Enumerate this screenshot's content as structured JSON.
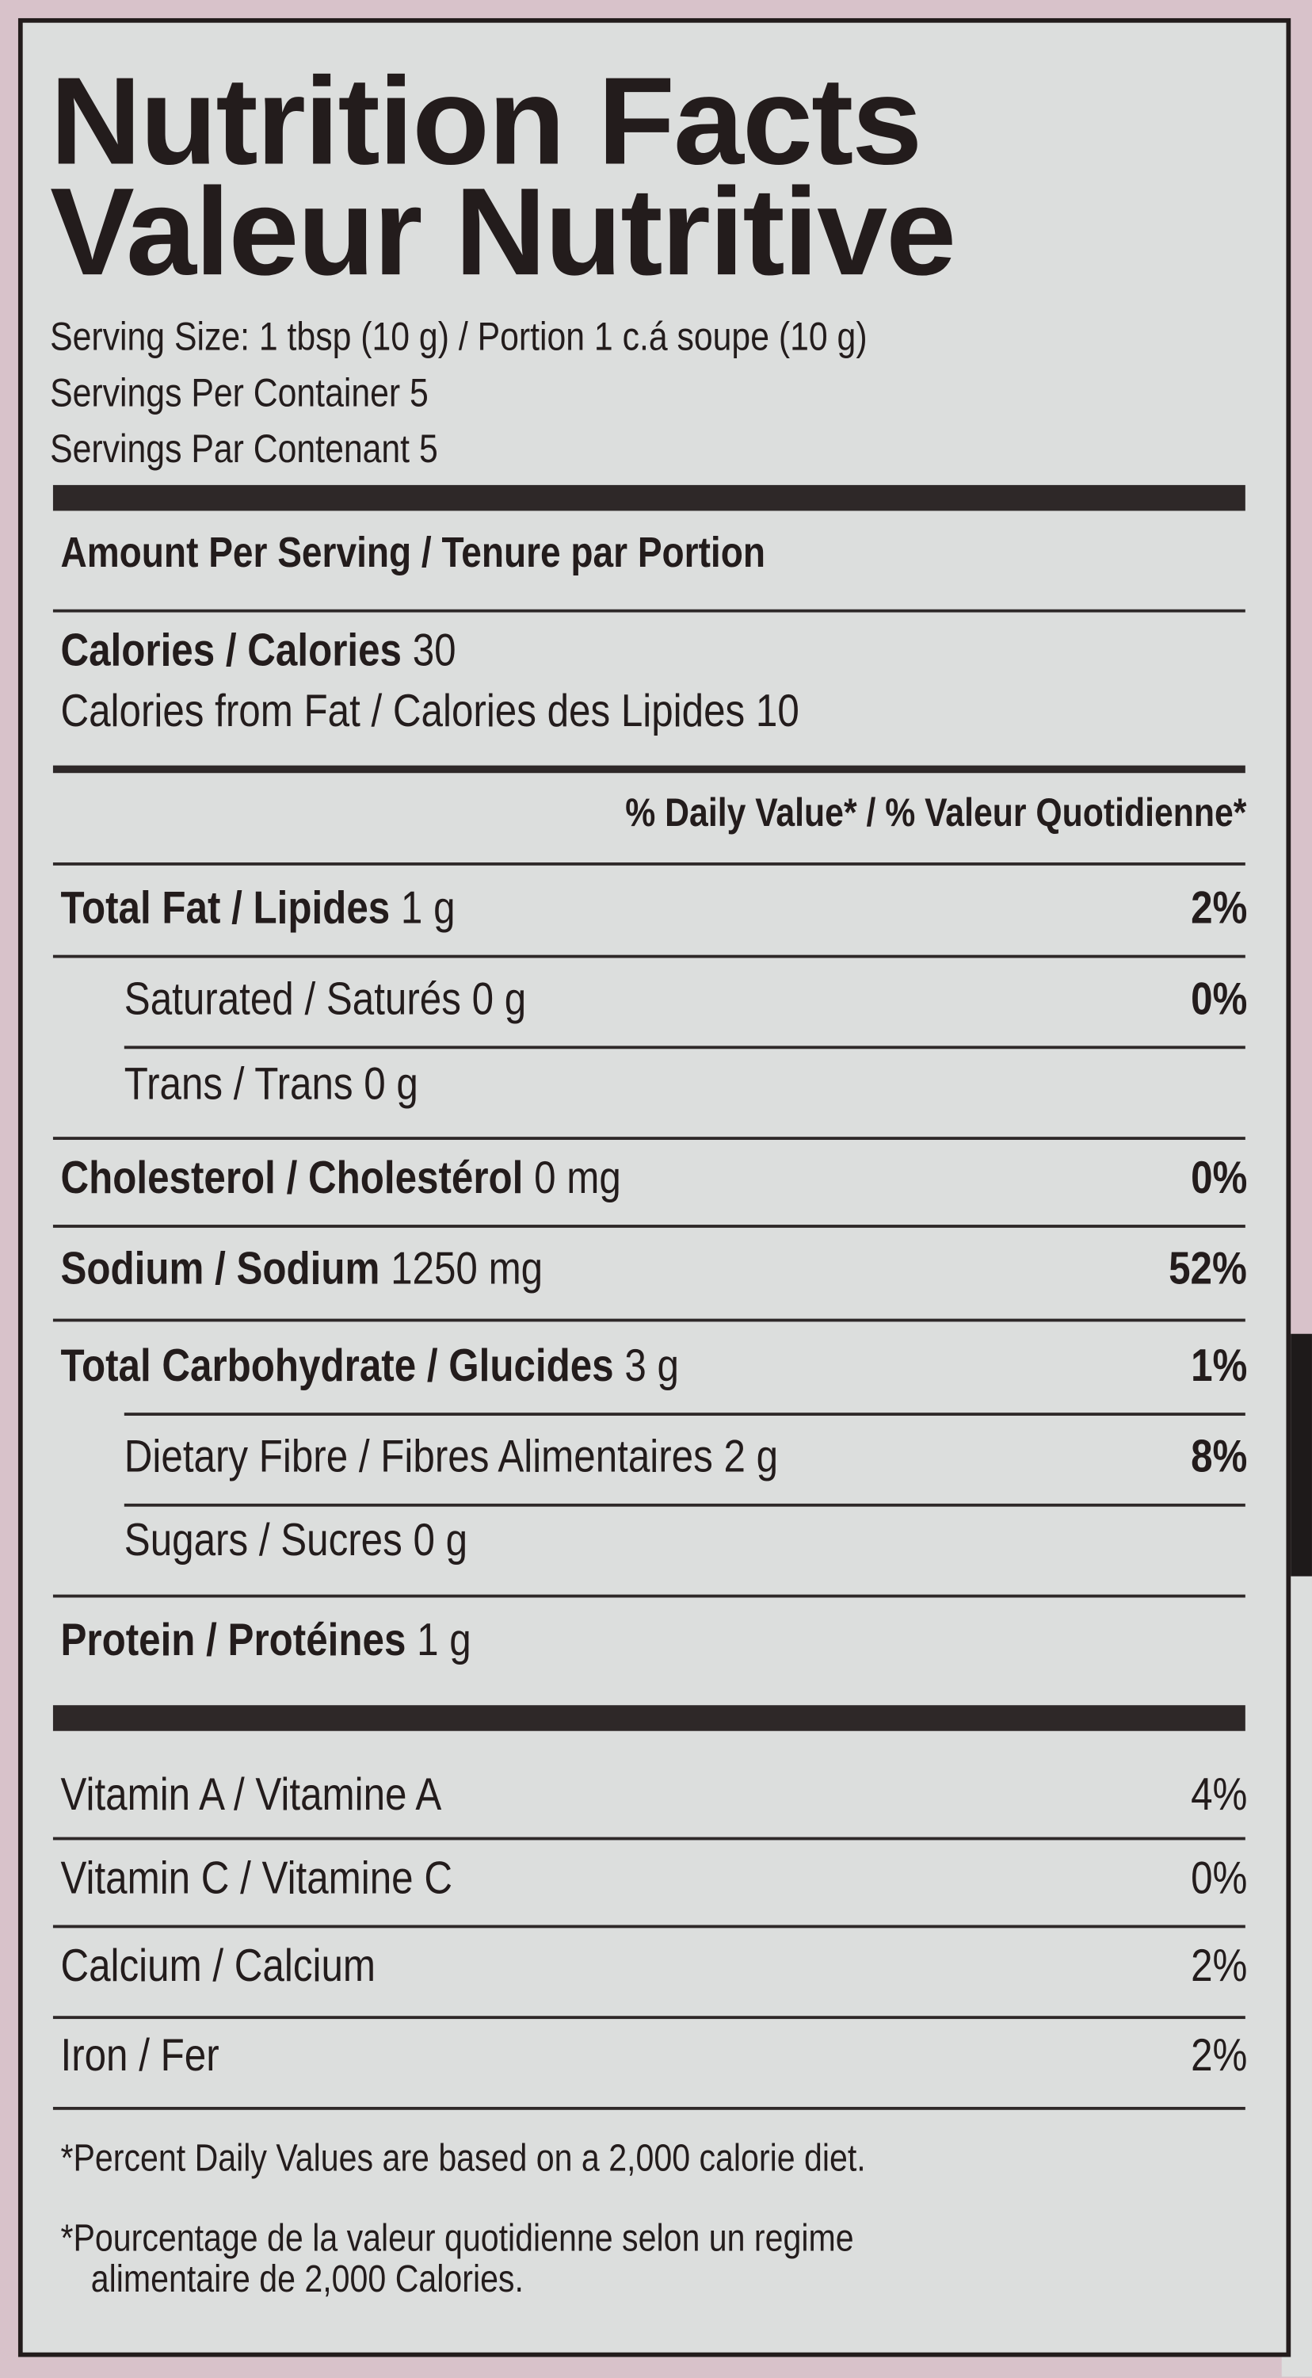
{
  "colors": {
    "background": "#d8c2ca",
    "label": "#dcdedd",
    "ink": "#231c1c"
  },
  "title": {
    "en": "Nutrition Facts",
    "fr": "Valeur Nutritive"
  },
  "serving": {
    "size": "Serving Size: 1 tbsp (10 g) / Portion 1 c.á soupe (10 g)",
    "per_container": "Servings Per Container 5",
    "par_contenant": "Servings Par Contenant 5"
  },
  "amount_header": "Amount Per Serving / Tenure par Portion",
  "calories": {
    "label": "Calories / Calories",
    "value": "30",
    "from_fat": "Calories from Fat / Calories des Lipides 10"
  },
  "daily_value_header": "% Daily Value* / % Valeur Quotidienne*",
  "nutrients": [
    {
      "label": "Total Fat / Lipides",
      "amount": "1 g",
      "dv": "2%"
    },
    {
      "label": "Saturated / Saturés 0 g",
      "amount": "",
      "dv": "0%"
    },
    {
      "label": "Trans / Trans 0 g",
      "amount": "",
      "dv": ""
    },
    {
      "label": "Cholesterol / Cholestérol",
      "amount": "0 mg",
      "dv": "0%"
    },
    {
      "label": "Sodium / Sodium",
      "amount": "1250 mg",
      "dv": "52%"
    },
    {
      "label": "Total Carbohydrate / Glucides",
      "amount": "3 g",
      "dv": "1%"
    },
    {
      "label": "Dietary Fibre / Fibres Alimentaires 2 g",
      "amount": "",
      "dv": "8%"
    },
    {
      "label": "Sugars / Sucres 0 g",
      "amount": "",
      "dv": ""
    },
    {
      "label": "Protein / Protéines",
      "amount": "1 g",
      "dv": ""
    }
  ],
  "vitamins": [
    {
      "label": "Vitamin A / Vitamine A",
      "dv": "4%"
    },
    {
      "label": "Vitamin C / Vitamine C",
      "dv": "0%"
    },
    {
      "label": "Calcium / Calcium",
      "dv": "2%"
    },
    {
      "label": "Iron / Fer",
      "dv": "2%"
    }
  ],
  "footnotes": {
    "en": "*Percent Daily Values are based on a 2,000 calorie diet.",
    "fr_1": "*Pourcentage de la valeur quotidienne selon un regime",
    "fr_2": "alimentaire de 2,000 Calories."
  }
}
